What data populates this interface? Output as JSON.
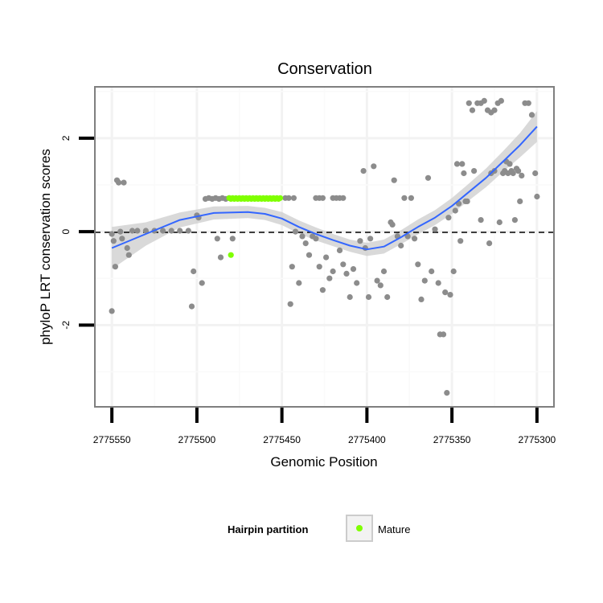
{
  "chart_data": {
    "type": "scatter",
    "title": "Conservation",
    "xlabel": "Genomic Position",
    "ylabel": "phyloP LRT conservation scores",
    "xlim": [
      2775560,
      2775290
    ],
    "ylim": [
      -3.75,
      3.1
    ],
    "x_reversed": true,
    "x_ticks": [
      2775550,
      2775500,
      2775450,
      2775400,
      2775350,
      2775300
    ],
    "x_tick_labels": [
      "2775550",
      "2775500",
      "2775450",
      "2775400",
      "2775350",
      "2775300"
    ],
    "y_ticks": [
      -2,
      0,
      2
    ],
    "y_tick_labels": [
      "-2",
      "0",
      "2"
    ],
    "reference_line": {
      "y": 0,
      "style": "dashed",
      "color": "#000000"
    },
    "grid": true,
    "legend": {
      "title": "Hairpin partition",
      "placement": "bottom",
      "entries": [
        {
          "label": "Mature",
          "color": "#7fff00"
        }
      ]
    },
    "colors": {
      "other": "#8c8c8c",
      "mature": "#7fff00",
      "smooth": "#3366ff",
      "band": "#cccccc",
      "panel_border": "#7f7f7f"
    },
    "series": [
      {
        "name": "",
        "color": "#8c8c8c",
        "points": [
          [
            2775550,
            -0.05
          ],
          [
            2775549,
            -0.2
          ],
          [
            2775548,
            -0.75
          ],
          [
            2775547,
            1.1
          ],
          [
            2775546,
            1.05
          ],
          [
            2775545,
            0.0
          ],
          [
            2775544,
            -0.15
          ],
          [
            2775543,
            1.05
          ],
          [
            2775541,
            -0.35
          ],
          [
            2775540,
            -0.5
          ],
          [
            2775538,
            0.02
          ],
          [
            2775535,
            0.02
          ],
          [
            2775530,
            0.02
          ],
          [
            2775525,
            0.02
          ],
          [
            2775520,
            0.02
          ],
          [
            2775515,
            0.02
          ],
          [
            2775510,
            0.02
          ],
          [
            2775505,
            0.02
          ],
          [
            2775550,
            -1.7
          ],
          [
            2775503,
            -1.6
          ],
          [
            2775502,
            -0.85
          ],
          [
            2775500,
            0.35
          ],
          [
            2775499,
            0.3
          ],
          [
            2775497,
            -1.1
          ],
          [
            2775495,
            0.7
          ],
          [
            2775493,
            0.72
          ],
          [
            2775491,
            0.7
          ],
          [
            2775489,
            0.72
          ],
          [
            2775487,
            0.7
          ],
          [
            2775485,
            0.72
          ],
          [
            2775483,
            0.7
          ],
          [
            2775481,
            0.72
          ],
          [
            2775488,
            -0.15
          ],
          [
            2775486,
            -0.55
          ],
          [
            2775479,
            -0.15
          ],
          [
            2775448,
            0.72
          ],
          [
            2775446,
            0.72
          ],
          [
            2775443,
            0.72
          ],
          [
            2775445,
            -1.55
          ],
          [
            2775444,
            -0.75
          ],
          [
            2775442,
            0.0
          ],
          [
            2775440,
            -1.1
          ],
          [
            2775438,
            -0.1
          ],
          [
            2775436,
            -0.25
          ],
          [
            2775434,
            -0.5
          ],
          [
            2775430,
            0.72
          ],
          [
            2775428,
            0.72
          ],
          [
            2775426,
            0.72
          ],
          [
            2775420,
            0.72
          ],
          [
            2775418,
            0.72
          ],
          [
            2775416,
            0.72
          ],
          [
            2775414,
            0.72
          ],
          [
            2775432,
            -0.1
          ],
          [
            2775430,
            -0.15
          ],
          [
            2775428,
            -0.75
          ],
          [
            2775426,
            -1.25
          ],
          [
            2775424,
            -0.55
          ],
          [
            2775422,
            -1.0
          ],
          [
            2775420,
            -0.85
          ],
          [
            2775416,
            -0.4
          ],
          [
            2775414,
            -0.7
          ],
          [
            2775412,
            -0.9
          ],
          [
            2775410,
            -1.4
          ],
          [
            2775408,
            -0.8
          ],
          [
            2775406,
            -1.1
          ],
          [
            2775404,
            -0.2
          ],
          [
            2775402,
            1.3
          ],
          [
            2775401,
            -0.35
          ],
          [
            2775399,
            -1.4
          ],
          [
            2775398,
            -0.15
          ],
          [
            2775396,
            1.4
          ],
          [
            2775394,
            -1.05
          ],
          [
            2775392,
            -1.15
          ],
          [
            2775390,
            -0.85
          ],
          [
            2775388,
            -1.4
          ],
          [
            2775386,
            0.2
          ],
          [
            2775385,
            0.15
          ],
          [
            2775384,
            1.1
          ],
          [
            2775382,
            -0.1
          ],
          [
            2775380,
            -0.3
          ],
          [
            2775378,
            0.72
          ],
          [
            2775376,
            -0.1
          ],
          [
            2775374,
            0.72
          ],
          [
            2775372,
            -0.15
          ],
          [
            2775370,
            -0.7
          ],
          [
            2775368,
            -1.45
          ],
          [
            2775366,
            -1.05
          ],
          [
            2775364,
            1.15
          ],
          [
            2775362,
            -0.85
          ],
          [
            2775360,
            0.05
          ],
          [
            2775358,
            -1.1
          ],
          [
            2775357,
            -2.2
          ],
          [
            2775355,
            -2.2
          ],
          [
            2775354,
            -1.3
          ],
          [
            2775353,
            -3.45
          ],
          [
            2775352,
            0.3
          ],
          [
            2775351,
            -1.35
          ],
          [
            2775349,
            -0.85
          ],
          [
            2775348,
            0.45
          ],
          [
            2775347,
            1.45
          ],
          [
            2775346,
            0.6
          ],
          [
            2775345,
            -0.2
          ],
          [
            2775344,
            1.45
          ],
          [
            2775343,
            1.25
          ],
          [
            2775342,
            0.65
          ],
          [
            2775341,
            0.65
          ],
          [
            2775340,
            2.75
          ],
          [
            2775338,
            2.6
          ],
          [
            2775337,
            1.3
          ],
          [
            2775335,
            2.75
          ],
          [
            2775333,
            2.75
          ],
          [
            2775331,
            2.8
          ],
          [
            2775329,
            2.6
          ],
          [
            2775327,
            2.55
          ],
          [
            2775325,
            2.6
          ],
          [
            2775323,
            2.75
          ],
          [
            2775321,
            2.8
          ],
          [
            2775319,
            1.3
          ],
          [
            2775317,
            1.25
          ],
          [
            2775315,
            1.3
          ],
          [
            2775313,
            0.25
          ],
          [
            2775311,
            1.3
          ],
          [
            2775309,
            1.2
          ],
          [
            2775307,
            2.75
          ],
          [
            2775305,
            2.75
          ],
          [
            2775303,
            2.5
          ],
          [
            2775301,
            1.25
          ],
          [
            2775300,
            0.75
          ],
          [
            2775310,
            0.65
          ],
          [
            2775320,
            1.25
          ],
          [
            2775328,
            -0.25
          ],
          [
            2775333,
            0.25
          ],
          [
            2775327,
            1.25
          ],
          [
            2775325,
            1.3
          ],
          [
            2775322,
            0.2
          ],
          [
            2775318,
            1.5
          ],
          [
            2775316,
            1.45
          ],
          [
            2775314,
            1.25
          ],
          [
            2775312,
            1.35
          ]
        ]
      },
      {
        "name": "Mature",
        "color": "#7fff00",
        "points": [
          [
            2775481,
            0.72
          ],
          [
            2775480,
            0.7
          ],
          [
            2775479,
            0.72
          ],
          [
            2775478,
            0.7
          ],
          [
            2775477,
            0.72
          ],
          [
            2775476,
            0.7
          ],
          [
            2775475,
            0.72
          ],
          [
            2775474,
            0.7
          ],
          [
            2775473,
            0.72
          ],
          [
            2775472,
            0.7
          ],
          [
            2775471,
            0.72
          ],
          [
            2775470,
            0.7
          ],
          [
            2775469,
            0.72
          ],
          [
            2775468,
            0.7
          ],
          [
            2775467,
            0.72
          ],
          [
            2775466,
            0.7
          ],
          [
            2775465,
            0.72
          ],
          [
            2775464,
            0.7
          ],
          [
            2775463,
            0.72
          ],
          [
            2775462,
            0.7
          ],
          [
            2775461,
            0.72
          ],
          [
            2775460,
            0.7
          ],
          [
            2775459,
            0.72
          ],
          [
            2775458,
            0.7
          ],
          [
            2775457,
            0.72
          ],
          [
            2775456,
            0.7
          ],
          [
            2775455,
            0.72
          ],
          [
            2775454,
            0.7
          ],
          [
            2775453,
            0.72
          ],
          [
            2775452,
            0.7
          ],
          [
            2775451,
            0.72
          ],
          [
            2775480,
            -0.5
          ]
        ]
      }
    ],
    "smooth": {
      "x": [
        2775550,
        2775530,
        2775510,
        2775490,
        2775470,
        2775460,
        2775450,
        2775440,
        2775430,
        2775420,
        2775410,
        2775400,
        2775390,
        2775380,
        2775370,
        2775360,
        2775350,
        2775340,
        2775330,
        2775320,
        2775310,
        2775300
      ],
      "y": [
        -0.35,
        -0.05,
        0.25,
        0.4,
        0.42,
        0.38,
        0.28,
        0.1,
        -0.05,
        -0.18,
        -0.3,
        -0.38,
        -0.32,
        -0.12,
        0.1,
        0.3,
        0.55,
        0.85,
        1.15,
        1.5,
        1.85,
        2.25
      ],
      "band_half_width": [
        0.45,
        0.25,
        0.16,
        0.14,
        0.13,
        0.13,
        0.14,
        0.14,
        0.14,
        0.13,
        0.13,
        0.14,
        0.15,
        0.15,
        0.16,
        0.16,
        0.17,
        0.18,
        0.2,
        0.22,
        0.26,
        0.33
      ]
    }
  }
}
